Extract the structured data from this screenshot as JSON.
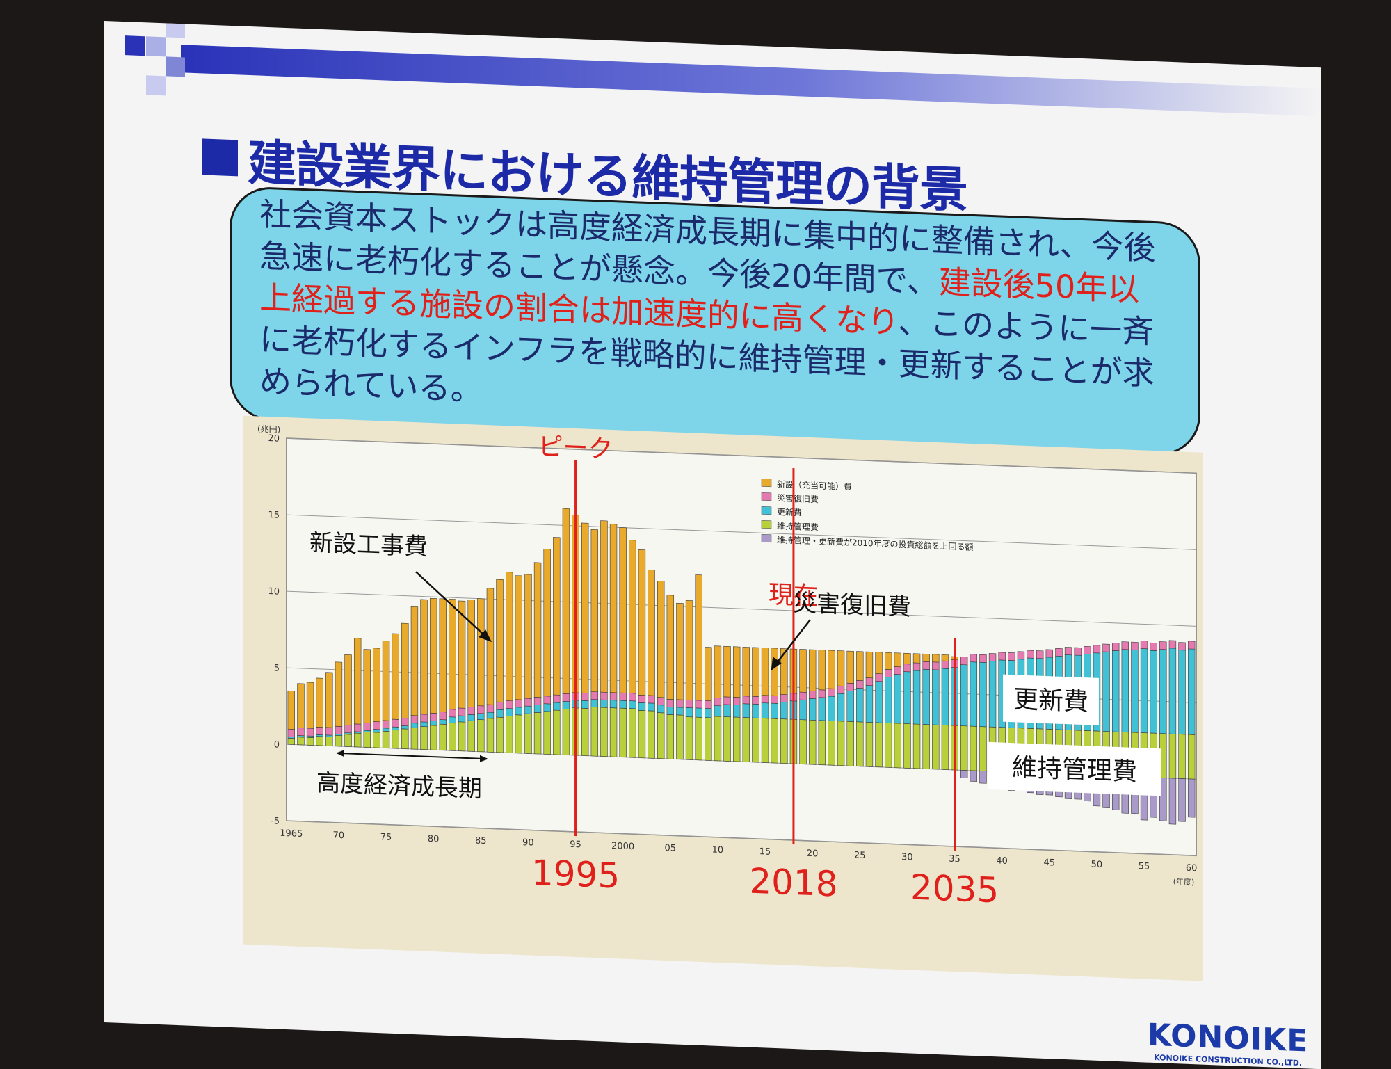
{
  "slide": {
    "title": "建設業界における維持管理の背景",
    "body_lines": [
      [
        {
          "text": "社会資本ストックは高度経済成長期に集中的に整備され、今後",
          "red": false
        }
      ],
      [
        {
          "text": "急速に老朽化することが懸念。今後20年間で、",
          "red": false
        },
        {
          "text": "建設後50年以",
          "red": true
        }
      ],
      [
        {
          "text": "上経過する施設の割合は加速度的に高くなり",
          "red": true
        },
        {
          "text": "、このように一斉",
          "red": false
        }
      ],
      [
        {
          "text": "に老朽化するインフラを戦略的に維持管理・更新することが求",
          "red": false
        }
      ],
      [
        {
          "text": "められている。",
          "red": false
        }
      ]
    ],
    "brand_name": "KONOIKE",
    "brand_sub": "KONOIKE CONSTRUCTION CO.,LTD."
  },
  "colors": {
    "title": "#1c2aa8",
    "textbox": "#7ed4e8",
    "new_construction": "#e9a92a",
    "disaster": "#e57ab0",
    "renewal": "#41c1d6",
    "maintenance": "#b9d03a",
    "excess": "#a99ac9",
    "marker": "#e0201a"
  },
  "chart_data": {
    "type": "bar",
    "stacked": true,
    "y_unit": "(兆円)",
    "x_unit": "(年度)",
    "ylim": [
      -5,
      20
    ],
    "yticks": [
      -5,
      0,
      5,
      10,
      15,
      20
    ],
    "x_tick_labels": [
      "1965",
      "70",
      "75",
      "80",
      "85",
      "90",
      "95",
      "2000",
      "05",
      "10",
      "15",
      "20",
      "25",
      "30",
      "35",
      "40",
      "45",
      "50",
      "55",
      "60"
    ],
    "x_years": [
      1965,
      1966,
      1967,
      1968,
      1969,
      1970,
      1971,
      1972,
      1973,
      1974,
      1975,
      1976,
      1977,
      1978,
      1979,
      1980,
      1981,
      1982,
      1983,
      1984,
      1985,
      1986,
      1987,
      1988,
      1989,
      1990,
      1991,
      1992,
      1993,
      1994,
      1995,
      1996,
      1997,
      1998,
      1999,
      2000,
      2001,
      2002,
      2003,
      2004,
      2005,
      2006,
      2007,
      2008,
      2009,
      2010,
      2011,
      2012,
      2013,
      2014,
      2015,
      2016,
      2017,
      2018,
      2019,
      2020,
      2021,
      2022,
      2023,
      2024,
      2025,
      2026,
      2027,
      2028,
      2029,
      2030,
      2031,
      2032,
      2033,
      2034,
      2035,
      2036,
      2037,
      2038,
      2039,
      2040,
      2041,
      2042,
      2043,
      2044,
      2045,
      2046,
      2047,
      2048,
      2049,
      2050,
      2051,
      2052,
      2053,
      2054,
      2055,
      2056,
      2057,
      2058,
      2059,
      2060
    ],
    "legend_position": "top-right",
    "series": [
      {
        "name": "維持管理費",
        "key": "maintenance",
        "values": [
          0.4,
          0.5,
          0.5,
          0.6,
          0.6,
          0.7,
          0.8,
          0.9,
          1.0,
          1.0,
          1.1,
          1.2,
          1.3,
          1.4,
          1.5,
          1.6,
          1.7,
          1.8,
          1.9,
          2.0,
          2.1,
          2.2,
          2.3,
          2.4,
          2.5,
          2.6,
          2.7,
          2.8,
          2.9,
          3.0,
          3.1,
          3.1,
          3.2,
          3.2,
          3.2,
          3.2,
          3.2,
          3.1,
          3.1,
          3.0,
          2.9,
          2.9,
          2.8,
          2.8,
          2.8,
          2.9,
          2.9,
          2.9,
          2.9,
          2.9,
          2.9,
          2.9,
          2.9,
          2.9,
          2.9,
          2.9,
          2.9,
          2.9,
          2.9,
          2.9,
          2.9,
          2.9,
          2.9,
          2.9,
          2.9,
          2.9,
          2.9,
          2.9,
          2.9,
          2.9,
          2.9,
          2.9,
          2.9,
          2.9,
          2.9,
          2.9,
          2.9,
          2.9,
          2.9,
          2.9,
          2.9,
          2.9,
          2.9,
          2.9,
          2.9,
          2.9,
          2.9,
          2.9,
          2.9,
          2.9,
          2.9,
          2.9,
          2.9,
          2.9,
          2.9,
          2.9
        ]
      },
      {
        "name": "更新費",
        "key": "renewal",
        "values": [
          0.1,
          0.1,
          0.1,
          0.1,
          0.1,
          0.1,
          0.1,
          0.1,
          0.1,
          0.2,
          0.2,
          0.2,
          0.2,
          0.3,
          0.3,
          0.3,
          0.3,
          0.4,
          0.4,
          0.4,
          0.4,
          0.4,
          0.5,
          0.5,
          0.5,
          0.5,
          0.5,
          0.5,
          0.5,
          0.5,
          0.5,
          0.5,
          0.5,
          0.5,
          0.5,
          0.5,
          0.5,
          0.5,
          0.5,
          0.5,
          0.5,
          0.5,
          0.6,
          0.6,
          0.6,
          0.7,
          0.8,
          0.8,
          0.9,
          0.9,
          1.0,
          1.0,
          1.1,
          1.2,
          1.3,
          1.4,
          1.5,
          1.6,
          1.8,
          2.0,
          2.2,
          2.4,
          2.7,
          3.0,
          3.2,
          3.4,
          3.5,
          3.6,
          3.6,
          3.7,
          3.8,
          4.0,
          4.2,
          4.2,
          4.3,
          4.4,
          4.4,
          4.5,
          4.6,
          4.6,
          4.7,
          4.8,
          4.9,
          4.9,
          5.0,
          5.1,
          5.2,
          5.3,
          5.4,
          5.4,
          5.5,
          5.4,
          5.5,
          5.6,
          5.5,
          5.6
        ]
      },
      {
        "name": "災害復旧費",
        "key": "disaster",
        "values": [
          0.5,
          0.5,
          0.5,
          0.5,
          0.5,
          0.5,
          0.5,
          0.5,
          0.5,
          0.5,
          0.5,
          0.5,
          0.5,
          0.5,
          0.5,
          0.5,
          0.5,
          0.5,
          0.5,
          0.5,
          0.5,
          0.5,
          0.5,
          0.5,
          0.5,
          0.5,
          0.5,
          0.5,
          0.5,
          0.5,
          0.5,
          0.5,
          0.5,
          0.5,
          0.5,
          0.5,
          0.5,
          0.5,
          0.5,
          0.5,
          0.5,
          0.5,
          0.5,
          0.5,
          0.5,
          0.5,
          0.5,
          0.5,
          0.5,
          0.5,
          0.5,
          0.5,
          0.5,
          0.5,
          0.5,
          0.5,
          0.5,
          0.5,
          0.5,
          0.5,
          0.5,
          0.5,
          0.5,
          0.5,
          0.5,
          0.5,
          0.5,
          0.5,
          0.5,
          0.5,
          0.5,
          0.5,
          0.5,
          0.5,
          0.5,
          0.5,
          0.5,
          0.5,
          0.5,
          0.5,
          0.5,
          0.5,
          0.5,
          0.5,
          0.5,
          0.5,
          0.5,
          0.5,
          0.5,
          0.5,
          0.5,
          0.5,
          0.5,
          0.5,
          0.5,
          0.5
        ]
      },
      {
        "name": "新設（充当可能）費",
        "key": "new_construction",
        "values": [
          2.5,
          2.9,
          3.0,
          3.2,
          3.6,
          4.2,
          4.6,
          5.6,
          4.8,
          4.8,
          5.2,
          5.6,
          6.2,
          7.1,
          7.5,
          7.5,
          7.4,
          7.2,
          7.0,
          7.0,
          7.0,
          7.6,
          8.0,
          8.4,
          8.1,
          8.1,
          8.8,
          9.6,
          10.3,
          12.1,
          11.6,
          11.1,
          10.6,
          11.2,
          11.0,
          10.8,
          10.0,
          9.5,
          8.2,
          7.6,
          6.8,
          6.3,
          6.5,
          8.2,
          3.5,
          3.4,
          3.3,
          3.3,
          3.2,
          3.2,
          3.1,
          3.1,
          3.0,
          2.9,
          2.8,
          2.7,
          2.6,
          2.5,
          2.3,
          2.1,
          1.9,
          1.7,
          1.4,
          1.1,
          0.9,
          0.7,
          0.6,
          0.5,
          0.5,
          0.4,
          0.2,
          0,
          0,
          0,
          0,
          0,
          0,
          0,
          0,
          0,
          0,
          0,
          0,
          0,
          0,
          0,
          0,
          0,
          0,
          0,
          0,
          0,
          0,
          0,
          0,
          0
        ]
      },
      {
        "name": "維持管理・更新費が2010年度の投資総額を上回る額",
        "key": "excess",
        "values": [
          0,
          0,
          0,
          0,
          0,
          0,
          0,
          0,
          0,
          0,
          0,
          0,
          0,
          0,
          0,
          0,
          0,
          0,
          0,
          0,
          0,
          0,
          0,
          0,
          0,
          0,
          0,
          0,
          0,
          0,
          0,
          0,
          0,
          0,
          0,
          0,
          0,
          0,
          0,
          0,
          0,
          0,
          0,
          0,
          0,
          0,
          0,
          0,
          0,
          0,
          0,
          0,
          0,
          0,
          0,
          0,
          0,
          0,
          0,
          0,
          0,
          0,
          0,
          0,
          0,
          0,
          0,
          0,
          0,
          0,
          0,
          -0.5,
          -0.7,
          -0.8,
          -0.7,
          -1.1,
          -1.2,
          -1.1,
          -1.3,
          -1.4,
          -1.4,
          -1.5,
          -1.6,
          -1.6,
          -1.7,
          -2.0,
          -2.1,
          -2.2,
          -2.4,
          -2.4,
          -2.8,
          -2.6,
          -2.8,
          -3.0,
          -2.8,
          -2.5
        ]
      }
    ],
    "legend_order": [
      "new_construction",
      "disaster",
      "renewal",
      "maintenance",
      "excess"
    ],
    "markers": [
      {
        "year": 1995,
        "top_label": "ピーク",
        "bottom_label": "1995"
      },
      {
        "year": 2018,
        "top_label": "現在",
        "bottom_label": "2018"
      },
      {
        "year": 2035,
        "top_label": "",
        "bottom_label": "2035"
      }
    ],
    "annotations": {
      "new_construction": "新設工事費",
      "disaster": "災害復旧費",
      "high_growth": "高度経済成長期",
      "renewal": "更新費",
      "maintenance": "維持管理費"
    }
  }
}
